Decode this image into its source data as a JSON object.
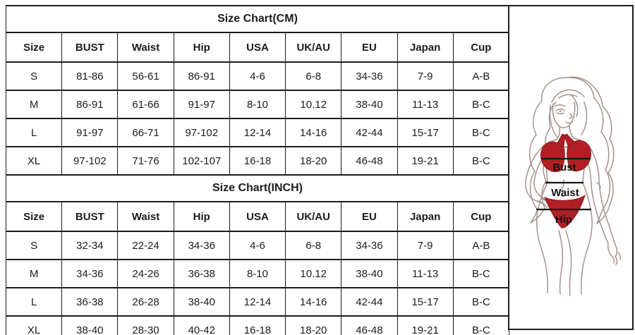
{
  "colors": {
    "border": "#1c1c1c",
    "text": "#1c1c1c",
    "bikini_red": "#b11f24",
    "bikini_red_dark": "#8c171b",
    "line_art": "#a5928c",
    "measure_line": "#141414",
    "background": "#ffffff"
  },
  "tables": [
    {
      "title": "Size Chart(CM)",
      "columns": [
        "Size",
        "BUST",
        "Waist",
        "Hip",
        "USA",
        "UK/AU",
        "EU",
        "Japan",
        "Cup"
      ],
      "rows": [
        [
          "S",
          "81-86",
          "56-61",
          "86-91",
          "4-6",
          "6-8",
          "34-36",
          "7-9",
          "A-B"
        ],
        [
          "M",
          "86-91",
          "61-66",
          "91-97",
          "8-10",
          "10.12",
          "38-40",
          "11-13",
          "B-C"
        ],
        [
          "L",
          "91-97",
          "66-71",
          "97-102",
          "12-14",
          "14-16",
          "42-44",
          "15-17",
          "B-C"
        ],
        [
          "XL",
          "97-102",
          "71-76",
          "102-107",
          "16-18",
          "18-20",
          "46-48",
          "19-21",
          "B-C"
        ]
      ]
    },
    {
      "title": "Size Chart(INCH)",
      "columns": [
        "Size",
        "BUST",
        "Waist",
        "Hip",
        "USA",
        "UK/AU",
        "EU",
        "Japan",
        "Cup"
      ],
      "rows": [
        [
          "S",
          "32-34",
          "22-24",
          "34-36",
          "4-6",
          "6-8",
          "34-36",
          "7-9",
          "A-B"
        ],
        [
          "M",
          "34-36",
          "24-26",
          "36-38",
          "8-10",
          "10.12",
          "38-40",
          "11-13",
          "B-C"
        ],
        [
          "L",
          "36-38",
          "26-28",
          "38-40",
          "12-14",
          "14-16",
          "42-44",
          "15-17",
          "B-C"
        ],
        [
          "XL",
          "38-40",
          "28-30",
          "40-42",
          "16-18",
          "18-20",
          "46-48",
          "19-21",
          "B-C"
        ]
      ]
    }
  ],
  "figure": {
    "labels": {
      "bust": "Bust",
      "waist": "Waist",
      "hip": "Hip"
    }
  }
}
